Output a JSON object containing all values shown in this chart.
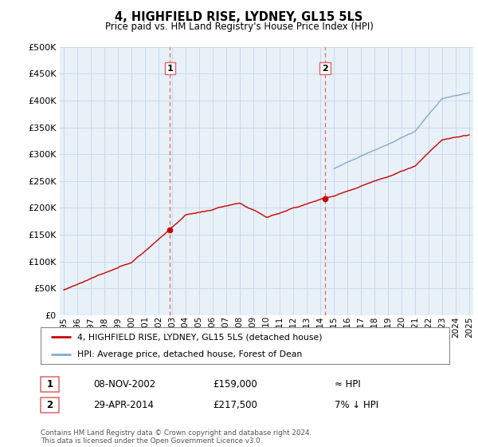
{
  "title": "4, HIGHFIELD RISE, LYDNEY, GL15 5LS",
  "subtitle": "Price paid vs. HM Land Registry's House Price Index (HPI)",
  "ylabel_ticks": [
    "£0",
    "£50K",
    "£100K",
    "£150K",
    "£200K",
    "£250K",
    "£300K",
    "£350K",
    "£400K",
    "£450K",
    "£500K"
  ],
  "ytick_values": [
    0,
    50000,
    100000,
    150000,
    200000,
    250000,
    300000,
    350000,
    400000,
    450000,
    500000
  ],
  "ylim": [
    0,
    500000
  ],
  "xlim_start": 1994.7,
  "xlim_end": 2025.3,
  "x_tick_labels": [
    "1995",
    "1996",
    "1997",
    "1998",
    "1999",
    "2000",
    "2001",
    "2002",
    "2003",
    "2004",
    "2005",
    "2006",
    "2007",
    "2008",
    "2009",
    "2010",
    "2011",
    "2012",
    "2013",
    "2014",
    "2015",
    "2016",
    "2017",
    "2018",
    "2019",
    "2020",
    "2021",
    "2022",
    "2023",
    "2024",
    "2025"
  ],
  "sale1_x": 2002.86,
  "sale1_y": 159000,
  "sale2_x": 2014.33,
  "sale2_y": 217500,
  "sale1_date": "08-NOV-2002",
  "sale1_price": "£159,000",
  "sale1_hpi_text": "≈ HPI",
  "sale2_date": "29-APR-2014",
  "sale2_price": "£217,500",
  "sale2_hpi_text": "7% ↓ HPI",
  "red_color": "#cc0000",
  "blue_color": "#88aacc",
  "dashed_color": "#dd6666",
  "grid_color": "#c8daea",
  "bg_color": "#e8f0f8",
  "legend_label_red": "4, HIGHFIELD RISE, LYDNEY, GL15 5LS (detached house)",
  "legend_label_blue": "HPI: Average price, detached house, Forest of Dean",
  "footer": "Contains HM Land Registry data © Crown copyright and database right 2024.\nThis data is licensed under the Open Government Licence v3.0.",
  "hpi_start_display_year": 2015.0
}
